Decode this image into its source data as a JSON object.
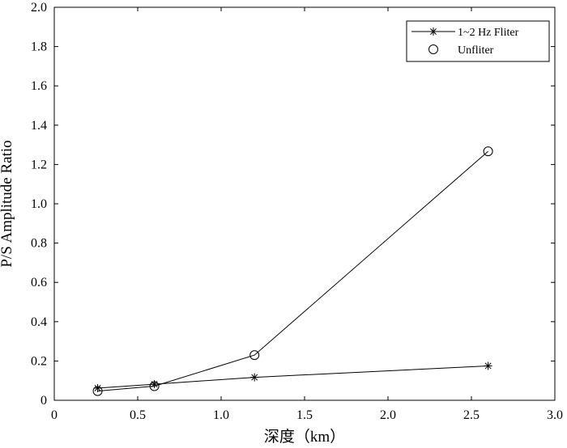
{
  "chart_data": {
    "type": "line",
    "xlabel": "深度（km）",
    "ylabel": "P/S Amplitude Ratio",
    "xlim": [
      0,
      3.0
    ],
    "ylim": [
      0,
      2.0
    ],
    "x_ticks": [
      "0",
      "0.5",
      "1.0",
      "1.5",
      "2.0",
      "2.5",
      "3.0"
    ],
    "y_ticks": [
      "0",
      "0.2",
      "0.4",
      "0.6",
      "0.8",
      "1.0",
      "1.2",
      "1.4",
      "1.6",
      "1.8",
      "2.0"
    ],
    "legend_position": "top-right",
    "grid": false,
    "series": [
      {
        "name": "1~2 Hz Fliter",
        "marker": "asterisk",
        "color": "#000000",
        "x": [
          0.26,
          0.6,
          1.2,
          2.6
        ],
        "y": [
          0.062,
          0.082,
          0.117,
          0.175
        ]
      },
      {
        "name": "Unfliter",
        "marker": "circle",
        "color": "#000000",
        "x": [
          0.26,
          0.6,
          1.2,
          2.6
        ],
        "y": [
          0.047,
          0.072,
          0.23,
          1.267
        ]
      }
    ]
  }
}
